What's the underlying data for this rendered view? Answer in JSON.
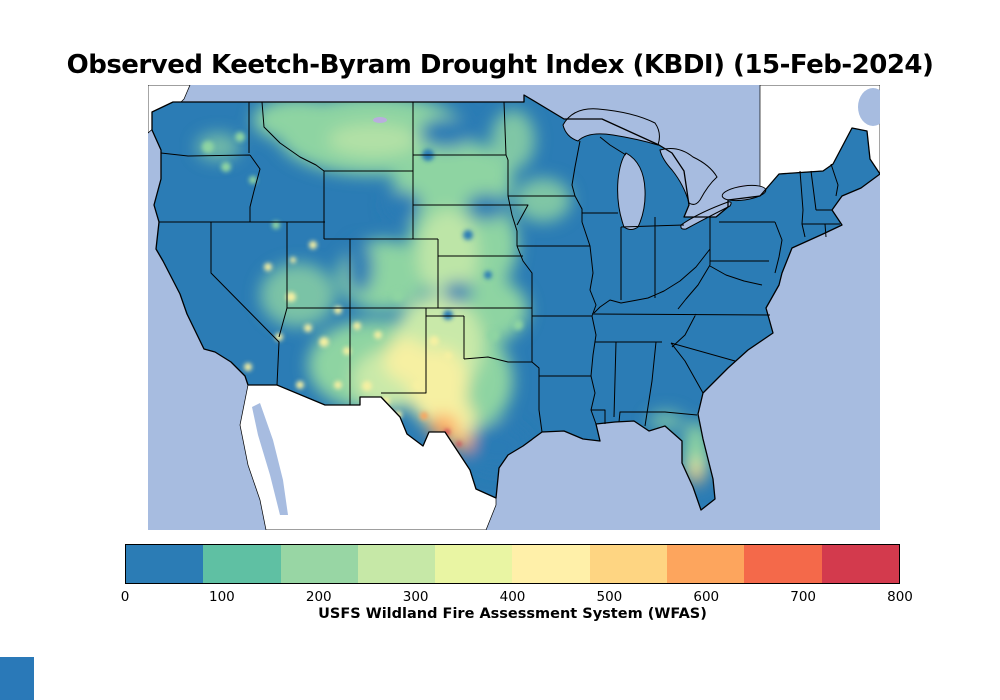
{
  "title": "Observed Keetch-Byram Drought Index (KBDI) (15-Feb-2024)",
  "source_caption": "USFS Wildland Fire Assessment System (WFAS)",
  "date_shown": "15-Feb-2024",
  "index_name": "Keetch-Byram Drought Index (KBDI)",
  "colorbar": {
    "min": 0,
    "max": 800,
    "ticks": [
      "0",
      "100",
      "200",
      "300",
      "400",
      "500",
      "600",
      "700",
      "800"
    ],
    "colors": [
      "#2b7cb5",
      "#5fc0a3",
      "#98d6a4",
      "#c6e8a7",
      "#e9f5a3",
      "#fff0a9",
      "#fed582",
      "#fda55d",
      "#f4694a",
      "#d33a4d"
    ]
  },
  "map": {
    "ocean_color": "#a7bce0",
    "us_base_color": "#2b7cb5",
    "foreign_land_color": "#ffffff",
    "state_border_color": "#000000",
    "regions_observed": [
      {
        "region": "Eastern US, Gulf Coast, Upper Midwest, Pacific coast",
        "kbdi_range": "0-100"
      },
      {
        "region": "Montana and western Dakotas",
        "kbdi_range": "100-250"
      },
      {
        "region": "Central Plains (NE, KS, OK)",
        "kbdi_range": "100-300"
      },
      {
        "region": "Great Basin and Four Corners (NV, UT, CO, AZ)",
        "kbdi_range": "100-400"
      },
      {
        "region": "New Mexico and West Texas",
        "kbdi_range": "300-500"
      },
      {
        "region": "South Texas / Rio Grande valley",
        "kbdi_range": "500-700"
      },
      {
        "region": "Central Florida peninsula",
        "kbdi_range": "200-600"
      }
    ]
  }
}
